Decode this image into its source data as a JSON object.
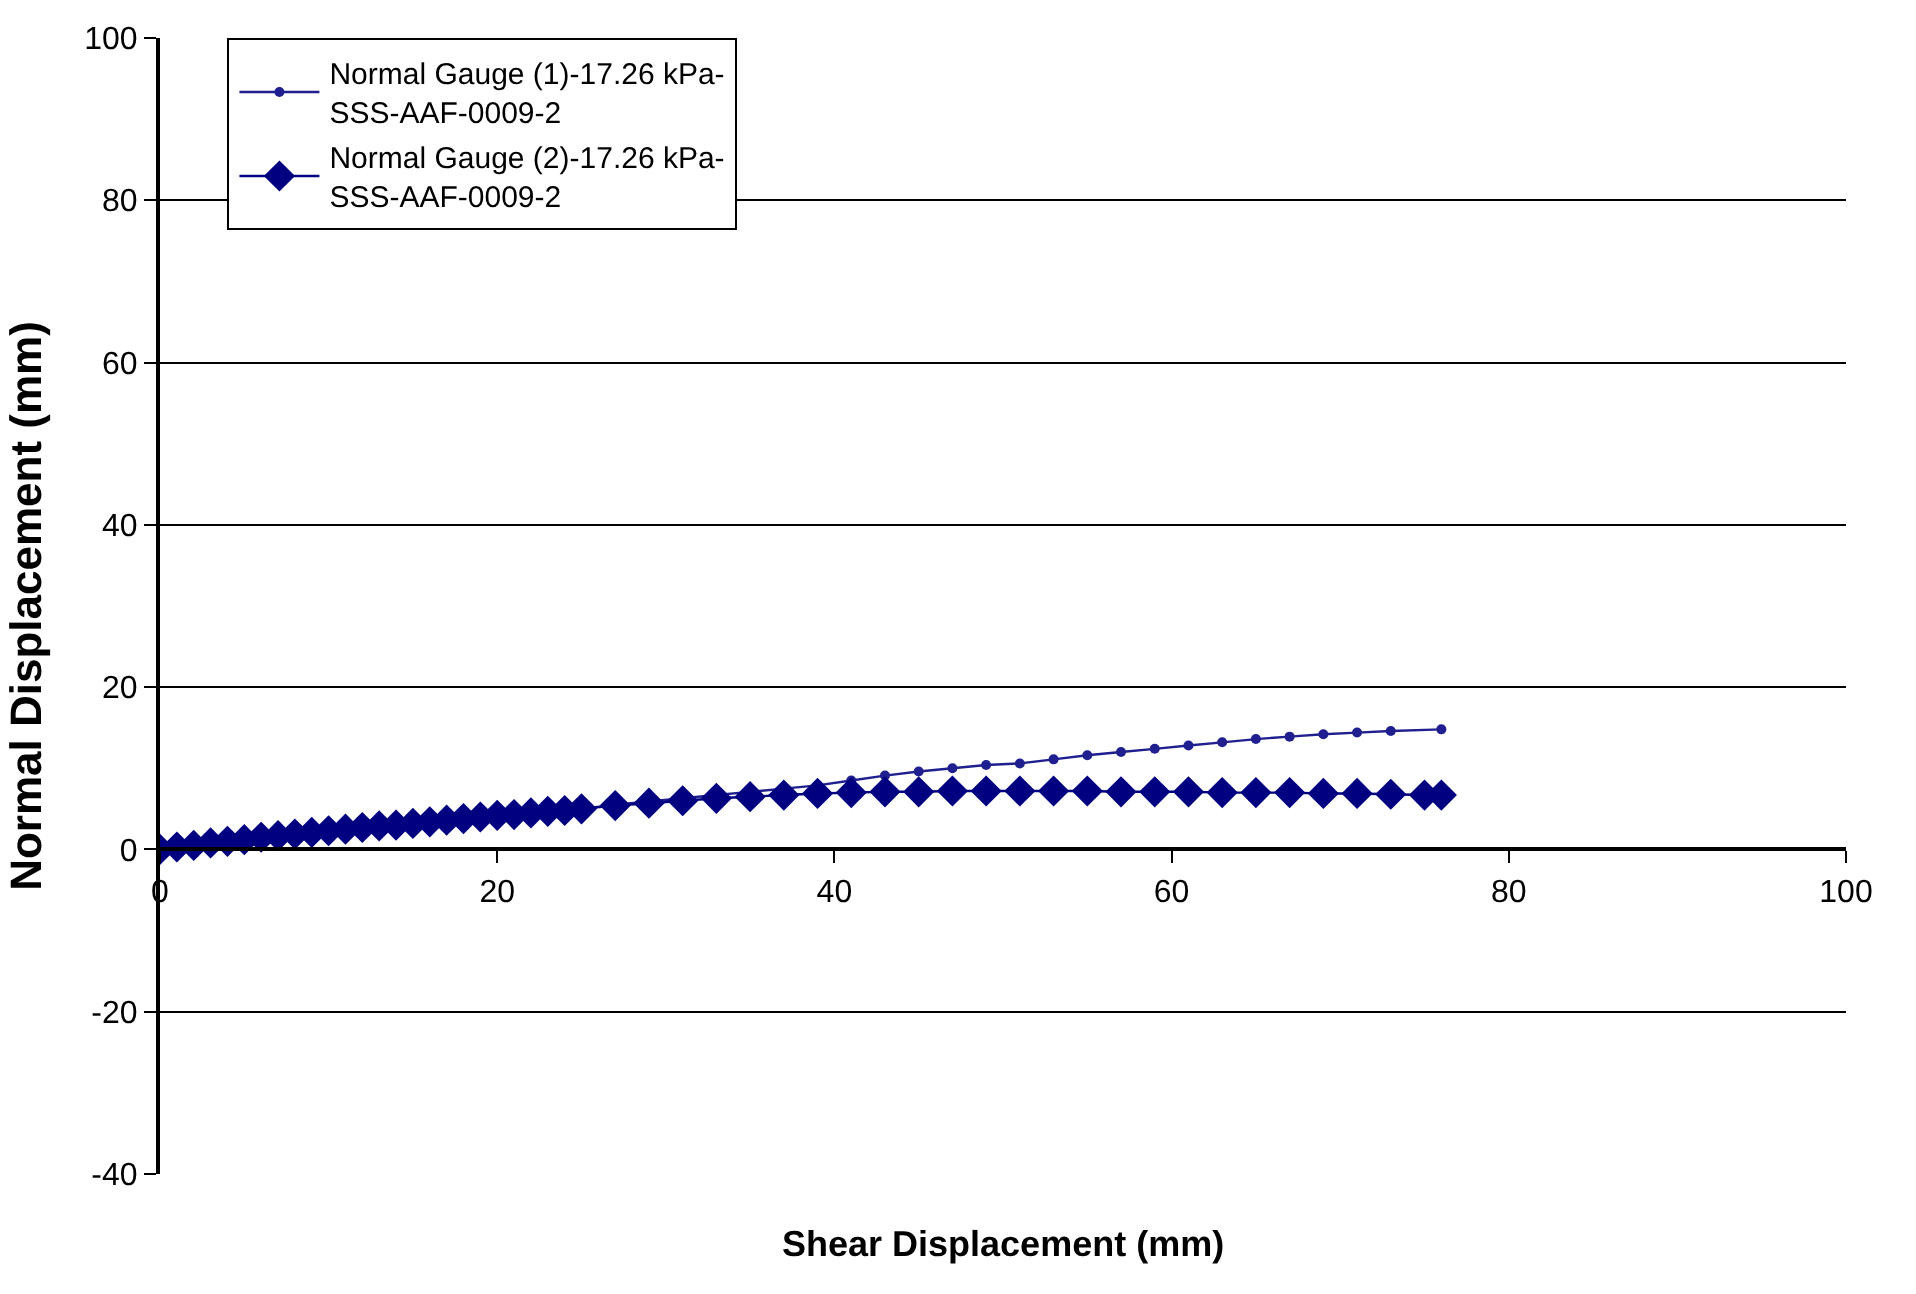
{
  "chart_data": {
    "type": "line",
    "xlabel": "Shear Displacement (mm)",
    "ylabel": "Normal Displacement (mm)",
    "xlim": [
      0,
      100
    ],
    "xticks": [
      0,
      20,
      40,
      60,
      80,
      100
    ],
    "ylim": [
      -40,
      100
    ],
    "yticks": [
      -40,
      -20,
      0,
      20,
      40,
      60,
      80,
      100
    ],
    "grid": "y",
    "legend": "top left",
    "series": [
      {
        "name": "Normal Gauge (1)-17.26 kPa-SSS-AAF-0009-2",
        "color": "#1f1f8f",
        "marker": "circle",
        "x": [
          0,
          1,
          2,
          3,
          4,
          5,
          6,
          7,
          8,
          9,
          10,
          11,
          12,
          13,
          14,
          15,
          16,
          17,
          18,
          19,
          20,
          21,
          22,
          23,
          24,
          25,
          27,
          29,
          31,
          33,
          35,
          37,
          39,
          41,
          43,
          45,
          47,
          49,
          51,
          53,
          55,
          57,
          59,
          61,
          63,
          65,
          67,
          69,
          71,
          73,
          76
        ],
        "values": [
          0,
          0.3,
          0.5,
          0.8,
          1.0,
          1.2,
          1.5,
          1.7,
          1.9,
          2.1,
          2.3,
          2.5,
          2.7,
          2.9,
          3.0,
          3.2,
          3.4,
          3.6,
          3.8,
          4.0,
          4.2,
          4.3,
          4.5,
          4.7,
          4.8,
          5.0,
          5.5,
          5.9,
          6.3,
          6.7,
          7.1,
          7.5,
          7.9,
          8.5,
          9.1,
          9.6,
          10.0,
          10.4,
          10.6,
          11.1,
          11.6,
          12.0,
          12.4,
          12.8,
          13.2,
          13.6,
          13.9,
          14.2,
          14.4,
          14.6,
          14.8
        ]
      },
      {
        "name": "Normal Gauge (2)-17.26 kPa-SSS-AAF-0009-2",
        "color": "#000080",
        "marker": "diamond",
        "x": [
          0,
          1,
          2,
          3,
          4,
          5,
          6,
          7,
          8,
          9,
          10,
          11,
          12,
          13,
          14,
          15,
          16,
          17,
          18,
          19,
          20,
          21,
          22,
          23,
          24,
          25,
          27,
          29,
          31,
          33,
          35,
          37,
          39,
          41,
          43,
          45,
          47,
          49,
          51,
          53,
          55,
          57,
          59,
          61,
          63,
          65,
          67,
          69,
          71,
          73,
          75,
          76
        ],
        "values": [
          0,
          0.3,
          0.5,
          0.8,
          1.0,
          1.2,
          1.5,
          1.7,
          1.9,
          2.1,
          2.3,
          2.5,
          2.7,
          2.9,
          3.0,
          3.2,
          3.4,
          3.6,
          3.8,
          4.0,
          4.2,
          4.3,
          4.5,
          4.7,
          4.8,
          5.0,
          5.4,
          5.7,
          6.0,
          6.3,
          6.5,
          6.7,
          6.9,
          7.0,
          7.1,
          7.1,
          7.2,
          7.2,
          7.2,
          7.2,
          7.2,
          7.1,
          7.1,
          7.1,
          7.0,
          7.0,
          7.0,
          6.9,
          6.9,
          6.8,
          6.7,
          6.7
        ]
      }
    ]
  }
}
